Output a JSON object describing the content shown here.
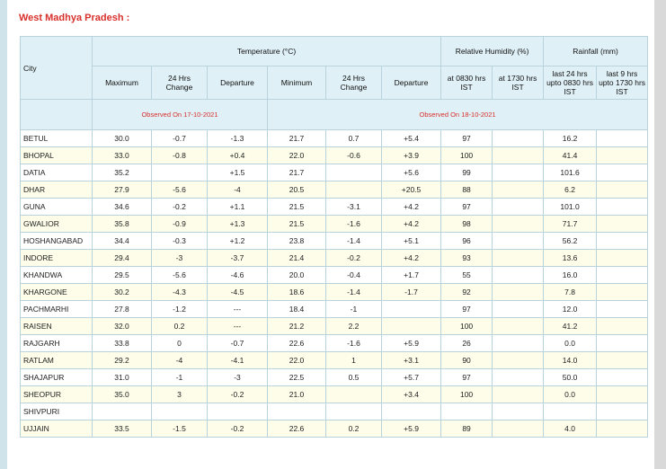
{
  "title": "West Madhya Pradesh :",
  "header": {
    "city": "City",
    "temperature": "Temperature (°C)",
    "humidity": "Relative Humidity (%)",
    "rainfall": "Rainfall (mm)",
    "columns": [
      "Maximum",
      "24 Hrs Change",
      "Departure",
      "Minimum",
      "24 Hrs Change",
      "Departure",
      "at 0830 hrs IST",
      "at 1730 hrs IST",
      "last 24 hrs upto 0830 hrs IST",
      "last 9 hrs upto 1730 hrs IST"
    ],
    "observed_1": "Observed On 17-10-2021",
    "observed_2": "Observed On 18-10-2021"
  },
  "table": {
    "rows": [
      [
        "BETUL",
        "30.0",
        "-0.7",
        "-1.3",
        "21.7",
        "0.7",
        "+5.4",
        "97",
        null,
        "16.2",
        null
      ],
      [
        "BHOPAL",
        "33.0",
        "-0.8",
        "+0.4",
        "22.0",
        "-0.6",
        "+3.9",
        "100",
        null,
        "41.4",
        null
      ],
      [
        "DATIA",
        "35.2",
        null,
        "+1.5",
        "21.7",
        null,
        "+5.6",
        "99",
        null,
        "101.6",
        null
      ],
      [
        "DHAR",
        "27.9",
        "-5.6",
        "-4",
        "20.5",
        null,
        "+20.5",
        "88",
        null,
        "6.2",
        null
      ],
      [
        "GUNA",
        "34.6",
        "-0.2",
        "+1.1",
        "21.5",
        "-3.1",
        "+4.2",
        "97",
        null,
        "101.0",
        null
      ],
      [
        "GWALIOR",
        "35.8",
        "-0.9",
        "+1.3",
        "21.5",
        "-1.6",
        "+4.2",
        "98",
        null,
        "71.7",
        null
      ],
      [
        "HOSHANGABAD",
        "34.4",
        "-0.3",
        "+1.2",
        "23.8",
        "-1.4",
        "+5.1",
        "96",
        null,
        "56.2",
        null
      ],
      [
        "INDORE",
        "29.4",
        "-3",
        "-3.7",
        "21.4",
        "-0.2",
        "+4.2",
        "93",
        null,
        "13.6",
        null
      ],
      [
        "KHANDWA",
        "29.5",
        "-5.6",
        "-4.6",
        "20.0",
        "-0.4",
        "+1.7",
        "55",
        null,
        "16.0",
        null
      ],
      [
        "KHARGONE",
        "30.2",
        "-4.3",
        "-4.5",
        "18.6",
        "-1.4",
        "-1.7",
        "92",
        null,
        "7.8",
        null
      ],
      [
        "PACHMARHI",
        "27.8",
        "-1.2",
        "---",
        "18.4",
        "-1",
        null,
        "97",
        null,
        "12.0",
        null
      ],
      [
        "RAISEN",
        "32.0",
        "0.2",
        "---",
        "21.2",
        "2.2",
        null,
        "100",
        null,
        "41.2",
        null
      ],
      [
        "RAJGARH",
        "33.8",
        "0",
        "-0.7",
        "22.6",
        "-1.6",
        "+5.9",
        "26",
        null,
        "0.0",
        null
      ],
      [
        "RATLAM",
        "29.2",
        "-4",
        "-4.1",
        "22.0",
        "1",
        "+3.1",
        "90",
        null,
        "14.0",
        null
      ],
      [
        "SHAJAPUR",
        "31.0",
        "-1",
        "-3",
        "22.5",
        "0.5",
        "+5.7",
        "97",
        null,
        "50.0",
        null
      ],
      [
        "SHEOPUR",
        "35.0",
        "3",
        "-0.2",
        "21.0",
        null,
        "+3.4",
        "100",
        null,
        "0.0",
        null
      ],
      [
        "SHIVPURI",
        null,
        null,
        null,
        null,
        null,
        null,
        null,
        null,
        null,
        null
      ],
      [
        "UJJAIN",
        "33.5",
        "-1.5",
        "-0.2",
        "22.6",
        "0.2",
        "+5.9",
        "89",
        null,
        "4.0",
        null
      ]
    ]
  }
}
